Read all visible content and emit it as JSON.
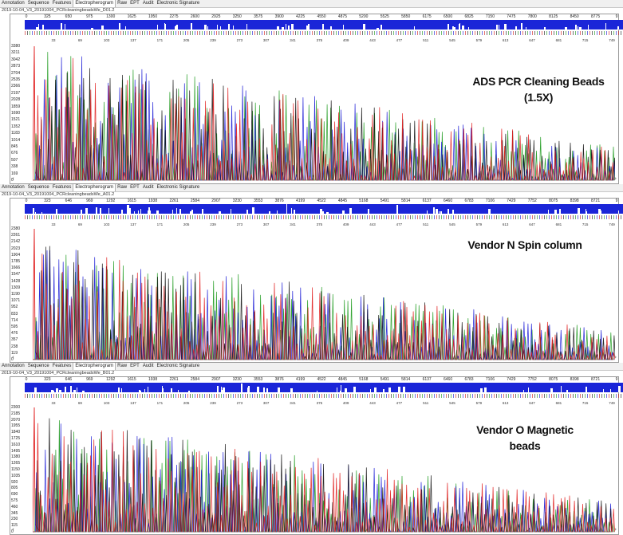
{
  "tabs": [
    "Annotation",
    "Sequence",
    "Features",
    "Electropherogram",
    "Raw",
    "EPT",
    "Audit",
    "Electronic Signature"
  ],
  "active_tab": "Electropherogram",
  "panels": [
    {
      "filename": "2019-10-04_V3_20191004_PCRcleaningbeadsWe_D01.2",
      "label_lines": [
        "ADS PCR Cleaning Beads",
        "(1.5X)"
      ],
      "ruler": [
        "0",
        "325",
        "650",
        "975",
        "1300",
        "1625",
        "1950",
        "2275",
        "2600",
        "2925",
        "3250",
        "3575",
        "3900",
        "4225",
        "4550",
        "4875",
        "5200",
        "5525",
        "5850",
        "6175",
        "6500",
        "6825",
        "7150",
        "7475",
        "7800",
        "8125",
        "8450",
        "8775",
        "9"
      ],
      "positions": [
        "33",
        "69",
        "103",
        "137",
        "171",
        "205",
        "239",
        "273",
        "307",
        "341",
        "375",
        "409",
        "443",
        "477",
        "511",
        "545",
        "579",
        "613",
        "647",
        "681",
        "715",
        "749"
      ],
      "yaxis": [
        "3380",
        "3211",
        "3042",
        "2873",
        "2704",
        "2535",
        "2366",
        "2197",
        "2028",
        "1859",
        "1690",
        "1521",
        "1352",
        "1183",
        "1014",
        "845",
        "676",
        "507",
        "338",
        "169",
        "0"
      ]
    },
    {
      "filename": "2019-10-04_V3_20191004_PCRcleaningbeadsWe_A01.2",
      "label_lines": [
        "Vendor N Spin column"
      ],
      "ruler": [
        "0",
        "323",
        "646",
        "969",
        "1292",
        "1615",
        "1938",
        "2261",
        "2584",
        "2907",
        "3230",
        "3553",
        "3876",
        "4199",
        "4522",
        "4845",
        "5168",
        "5491",
        "5814",
        "6137",
        "6460",
        "6783",
        "7106",
        "7429",
        "7752",
        "8075",
        "8398",
        "8721",
        "9"
      ],
      "positions": [
        "33",
        "69",
        "103",
        "137",
        "171",
        "205",
        "239",
        "273",
        "307",
        "341",
        "375",
        "409",
        "443",
        "477",
        "511",
        "545",
        "579",
        "613",
        "647",
        "681",
        "715",
        "749"
      ],
      "yaxis": [
        "2380",
        "2261",
        "2142",
        "2023",
        "1904",
        "1785",
        "1666",
        "1547",
        "1428",
        "1309",
        "1190",
        "1071",
        "952",
        "833",
        "714",
        "595",
        "476",
        "357",
        "238",
        "119",
        "0"
      ]
    },
    {
      "filename": "2019-10-04_V3_20191004_PCRcleaningbeadsWe_B01.2",
      "label_lines": [
        "Vendor O Magnetic",
        "beads"
      ],
      "ruler": [
        "0",
        "323",
        "646",
        "969",
        "1292",
        "1615",
        "1938",
        "2261",
        "2584",
        "2907",
        "3230",
        "3553",
        "3876",
        "4199",
        "4522",
        "4845",
        "5168",
        "5491",
        "5814",
        "6137",
        "6460",
        "6783",
        "7106",
        "7429",
        "7752",
        "8075",
        "8398",
        "8721",
        "9"
      ],
      "positions": [
        "33",
        "69",
        "103",
        "137",
        "171",
        "205",
        "239",
        "273",
        "307",
        "341",
        "375",
        "409",
        "443",
        "477",
        "511",
        "545",
        "579",
        "613",
        "647",
        "681",
        "715",
        "749"
      ],
      "yaxis": [
        "2300",
        "2185",
        "2070",
        "1955",
        "1840",
        "1725",
        "1610",
        "1495",
        "1380",
        "1265",
        "1150",
        "1035",
        "920",
        "805",
        "690",
        "575",
        "460",
        "345",
        "230",
        "115",
        "0"
      ]
    }
  ],
  "trace_colors": {
    "A": "#1d9a1d",
    "C": "#1a1ad6",
    "G": "#111111",
    "T": "#e01b1b",
    "quality": "#1a25d8"
  }
}
